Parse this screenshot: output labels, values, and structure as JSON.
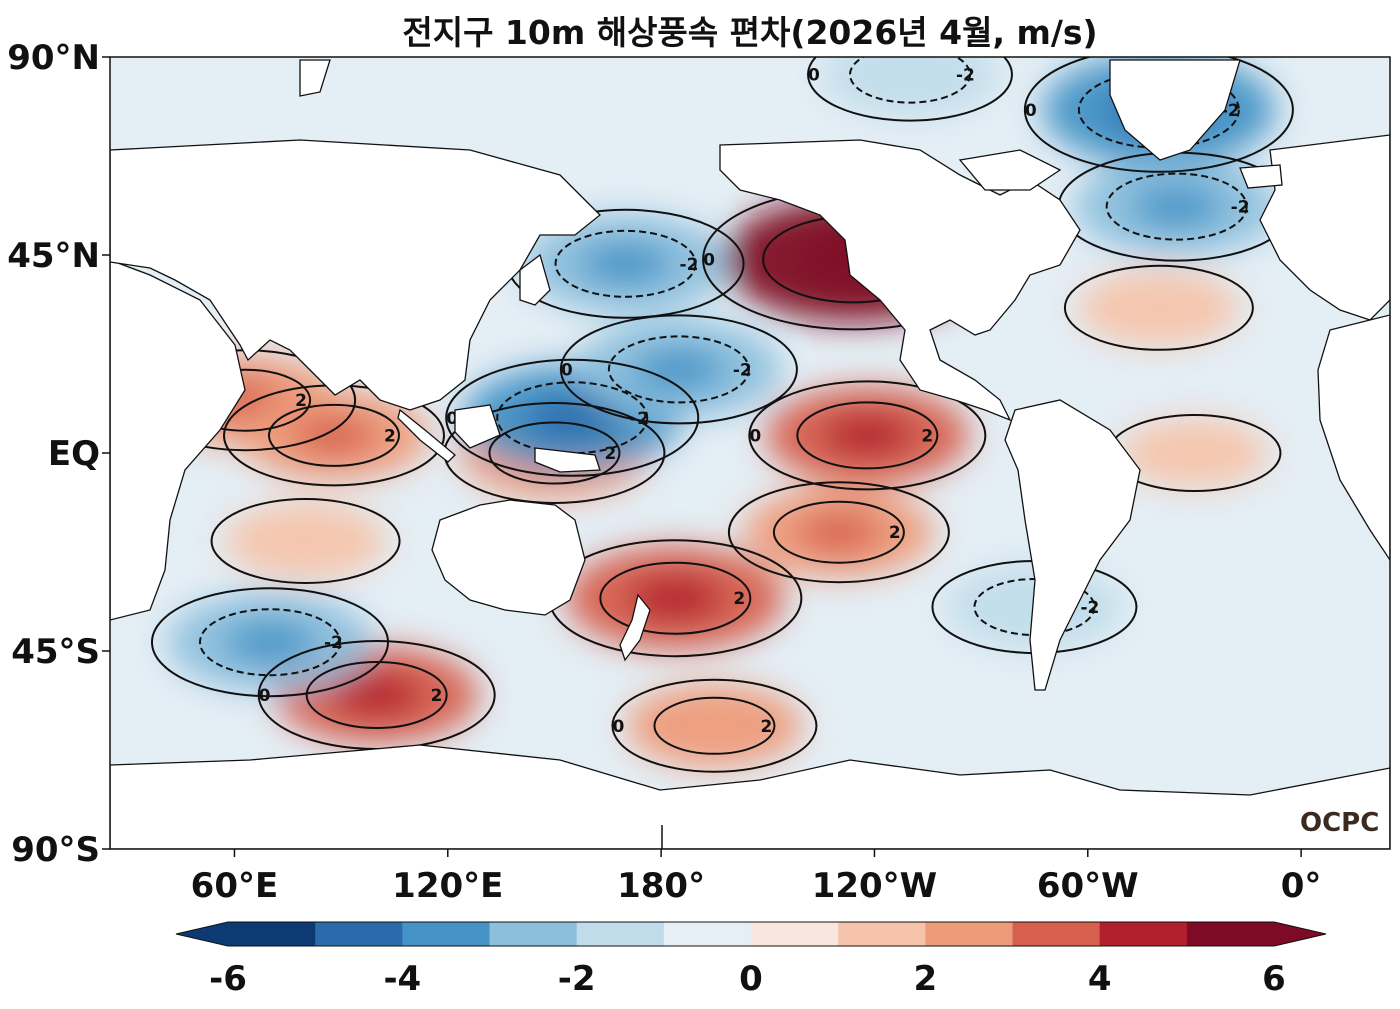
{
  "chart_data": {
    "type": "heatmap",
    "title": "전지구 10m 해상풍속 편차(2026년 4월, m/s)",
    "map_projection": "equirectangular",
    "central_longitude": 180,
    "x_ticks": [
      "60°E",
      "120°E",
      "180°",
      "120°W",
      "60°W",
      "0°"
    ],
    "x_tick_values": [
      60,
      120,
      180,
      240,
      300,
      360
    ],
    "x_range": [
      25,
      385
    ],
    "y_ticks": [
      "90°N",
      "45°N",
      "EQ",
      "45°S",
      "90°S"
    ],
    "y_tick_values": [
      90,
      45,
      0,
      -45,
      -90
    ],
    "y_range": [
      -90,
      90
    ],
    "colorbar": {
      "levels": [
        -6,
        -5,
        -4,
        -3,
        -2,
        -1,
        0,
        1,
        2,
        3,
        4,
        5,
        6
      ],
      "tick_labels": [
        "-6",
        "-4",
        "-2",
        "0",
        "2",
        "4",
        "6"
      ],
      "tick_values": [
        -6,
        -4,
        -2,
        0,
        2,
        4,
        6
      ],
      "colors": [
        "#0d3a73",
        "#2a6aad",
        "#4593c6",
        "#8bbfdc",
        "#c0dcea",
        "#e6eff6",
        "#f9e6df",
        "#f6c4ab",
        "#ee9b7a",
        "#d6604d",
        "#b2202e",
        "#7f0a25"
      ],
      "extend": "both"
    },
    "contour_levels": [
      -2,
      0,
      2
    ],
    "contour_label_values": [
      "0",
      "2",
      "-2"
    ],
    "anomaly_regions": [
      {
        "region": "Northeast Pacific (off US west coast)",
        "lon": 234,
        "lat": 44,
        "value": 5
      },
      {
        "region": "Southern Pacific west of New Zealand",
        "lon": 184,
        "lat": -33,
        "value": 3.5
      },
      {
        "region": "Eastern tropical Pacific",
        "lon": 238,
        "lat": 4,
        "value": 3
      },
      {
        "region": "Western equatorial Pacific",
        "lon": 150,
        "lat": 0,
        "value": 2.5
      },
      {
        "region": "Arabian Sea",
        "lon": 63,
        "lat": 12,
        "value": 2.5
      },
      {
        "region": "Bay of Bengal",
        "lon": 88,
        "lat": 4,
        "value": 2.5
      },
      {
        "region": "Southern Indian Ocean",
        "lon": 100,
        "lat": -55,
        "value": 3
      },
      {
        "region": "South Pacific (subtropics)",
        "lon": 230,
        "lat": -18,
        "value": 2.5
      },
      {
        "region": "Southern Ocean south of NZ",
        "lon": 195,
        "lat": -62,
        "value": 2
      },
      {
        "region": "Central Indian Ocean",
        "lon": 80,
        "lat": -20,
        "value": 1.5
      },
      {
        "region": "Tropical Atlantic",
        "lon": 330,
        "lat": 0,
        "value": 1
      },
      {
        "region": "North Atlantic",
        "lon": 320,
        "lat": 33,
        "value": 1.5
      },
      {
        "region": "Western tropical Pacific (north)",
        "lon": 155,
        "lat": 8,
        "value": -3.5
      },
      {
        "region": "North Pacific (Kuroshio extension)",
        "lon": 170,
        "lat": 43,
        "value": -3
      },
      {
        "region": "Central North Pacific subtropics",
        "lon": 185,
        "lat": 19,
        "value": -3
      },
      {
        "region": "Southern Indian Ocean (southwest of Australia)",
        "lon": 70,
        "lat": -43,
        "value": -3
      },
      {
        "region": "Greenland / Labrador Sea",
        "lon": 320,
        "lat": 78,
        "value": -4
      },
      {
        "region": "North Atlantic (south of Iceland)",
        "lon": 325,
        "lat": 56,
        "value": -3
      },
      {
        "region": "Arctic Ocean (Siberian side)",
        "lon": 250,
        "lat": 86,
        "value": -2
      },
      {
        "region": "Southeast Pacific off South America",
        "lon": 285,
        "lat": -35,
        "value": -2
      }
    ]
  },
  "logo": "OCPC"
}
